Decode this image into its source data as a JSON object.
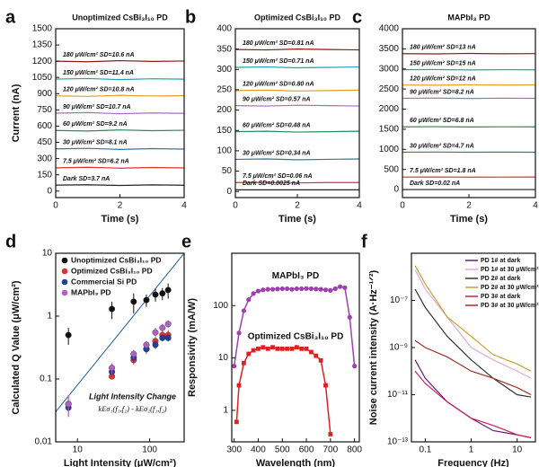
{
  "chart_data": [
    {
      "type": "line",
      "label": "a",
      "title": "Unoptimized CsBi₃I₁₀ PD",
      "xlabel": "Time (s)",
      "ylabel": "Current (nA)",
      "xlim": [
        0,
        4
      ],
      "xticks": [
        0,
        2,
        4
      ],
      "ylim": [
        -60,
        1500
      ],
      "yticks": [
        0,
        150,
        300,
        450,
        600,
        750,
        900,
        1050,
        1200,
        1350,
        1500
      ],
      "x": [
        0,
        1,
        2,
        3,
        4
      ],
      "series": [
        {
          "name": "180 μW/cm² SD=10.6 nA",
          "color": "#8b1a1a",
          "values": [
            1200,
            1195,
            1205,
            1198,
            1202
          ]
        },
        {
          "name": "150 μW/cm² SD=11.4 nA",
          "color": "#20a0b0",
          "values": [
            1035,
            1040,
            1030,
            1038,
            1034
          ]
        },
        {
          "name": "120 μW/cm² SD=10.8 nA",
          "color": "#e0a020",
          "values": [
            880,
            875,
            885,
            878,
            882
          ]
        },
        {
          "name": "90 μW/cm² SD=10.7 nA",
          "color": "#a070c8",
          "values": [
            720,
            725,
            715,
            722,
            718
          ]
        },
        {
          "name": "60 μW/cm² SD=9.2 nA",
          "color": "#2a8a5a",
          "values": [
            560,
            555,
            565,
            558,
            562
          ]
        },
        {
          "name": "30 μW/cm² SD=8.1 nA",
          "color": "#2a7aa0",
          "values": [
            390,
            395,
            385,
            392,
            388
          ]
        },
        {
          "name": "7.5 μW/cm² SD=6.2 nA",
          "color": "#e03030",
          "values": [
            215,
            220,
            212,
            218,
            214
          ]
        },
        {
          "name": "Dark SD=3.7 nA",
          "color": "#222222",
          "values": [
            55,
            58,
            52,
            57,
            54
          ]
        }
      ]
    },
    {
      "type": "line",
      "label": "b",
      "title": "Optimized CsBi₃I₁₀ PD",
      "xlabel": "Time (s)",
      "xlim": [
        0,
        4
      ],
      "xticks": [
        0,
        2,
        4
      ],
      "ylim": [
        -15,
        400
      ],
      "yticks": [
        0,
        50,
        100,
        150,
        200,
        250,
        300,
        350,
        400
      ],
      "x": [
        0,
        1,
        2,
        3,
        4
      ],
      "series": [
        {
          "name": "180 μW/cm² SD=0.81 nA",
          "color": "#8b1a1a",
          "values": [
            349,
            348,
            350,
            349,
            348
          ]
        },
        {
          "name": "150 μW/cm² SD=0.71 nA",
          "color": "#20a0b0",
          "values": [
            305,
            306,
            304,
            305,
            306
          ]
        },
        {
          "name": "120 μW/cm² SD=0.80 nA",
          "color": "#e0a020",
          "values": [
            248,
            249,
            247,
            248,
            249
          ]
        },
        {
          "name": "90 μW/cm² SD=0.57 nA",
          "color": "#a070c8",
          "values": [
            211,
            210,
            212,
            211,
            210
          ]
        },
        {
          "name": "60 μW/cm² SD=0.48 nA",
          "color": "#2a8a5a",
          "values": [
            147,
            148,
            146,
            147,
            148
          ]
        },
        {
          "name": "30 μW/cm² SD=0.34 nA",
          "color": "#2a7aa0",
          "values": [
            79,
            80,
            78,
            79,
            80
          ]
        },
        {
          "name": "7.5 μW/cm² SD=0.06 nA",
          "color": "#e03030",
          "values": [
            22,
            22,
            21,
            22,
            22
          ]
        },
        {
          "name": "Dark SD=0.0025 nA",
          "color": "#222222",
          "values": [
            4,
            4,
            4,
            4,
            4
          ]
        }
      ]
    },
    {
      "type": "line",
      "label": "c",
      "title": "MAPbI₃ PD",
      "xlabel": "Time (s)",
      "xlim": [
        0,
        4
      ],
      "xticks": [
        0,
        2,
        4
      ],
      "ylim": [
        -200,
        4000
      ],
      "yticks": [
        0,
        500,
        1000,
        1500,
        2000,
        2500,
        3000,
        3500,
        4000
      ],
      "x": [
        0,
        1,
        2,
        3,
        4
      ],
      "series": [
        {
          "name": "180 μW/cm² SD=13 nA",
          "color": "#8b1a1a",
          "values": [
            3380,
            3375,
            3385,
            3378,
            3382
          ]
        },
        {
          "name": "150 μW/cm² SD=15 nA",
          "color": "#20a0b0",
          "values": [
            2980,
            2985,
            2975,
            2982,
            2978
          ]
        },
        {
          "name": "120 μW/cm² SD=12 nA",
          "color": "#e0a020",
          "values": [
            2600,
            2595,
            2605,
            2598,
            2602
          ]
        },
        {
          "name": "90 μW/cm² SD=8.2 nA",
          "color": "#a070c8",
          "values": [
            2270,
            2274,
            2266,
            2272,
            2268
          ]
        },
        {
          "name": "60 μW/cm² SD=6.8 nA",
          "color": "#2a8a5a",
          "values": [
            1560,
            1563,
            1557,
            1561,
            1559
          ]
        },
        {
          "name": "30 μW/cm² SD=4.7 nA",
          "color": "#2a7aa0",
          "values": [
            930,
            932,
            928,
            931,
            929
          ]
        },
        {
          "name": "7.5 μW/cm² SD=1.8 nA",
          "color": "#e03030",
          "values": [
            310,
            311,
            309,
            310,
            311
          ]
        },
        {
          "name": "Dark SD=0.02 nA",
          "color": "#222222",
          "values": [
            0,
            0,
            0,
            0,
            0
          ]
        }
      ]
    },
    {
      "type": "scatter",
      "label": "d",
      "xlabel": "Light Intensity (μW/cm²)",
      "ylabel": "Calculated Q Value (μW/cm²)",
      "xscale": "log",
      "yscale": "log",
      "xlim": [
        5,
        300
      ],
      "xticks": [
        10,
        100
      ],
      "ylim": [
        0.01,
        10
      ],
      "yticks": [
        0.01,
        0.1,
        1,
        10
      ],
      "legend": "upper left",
      "annotations": [
        "Light Intensity Change",
        "kEσ₁(f₁,f₂) - kEσ₂(f₁,f₂)"
      ],
      "reference_line": {
        "x": [
          5,
          300
        ],
        "values": [
          0.03,
          10
        ],
        "color": "#1f5f9f"
      },
      "x": [
        7.5,
        30,
        60,
        90,
        120,
        150,
        180
      ],
      "series": [
        {
          "name": "Unoptimized CsBi₃I₁₀ PD",
          "color": "#111111",
          "values": [
            0.5,
            1.3,
            1.7,
            1.8,
            2.2,
            2.3,
            2.6
          ],
          "errors": [
            0.15,
            0.4,
            0.6,
            0.4,
            0.5,
            0.5,
            0.7
          ]
        },
        {
          "name": "Optimized CsBi₃I₁₀ PD",
          "color": "#e03030",
          "values": [
            0.04,
            0.11,
            0.2,
            0.3,
            0.4,
            0.5,
            0.5
          ],
          "errors": [
            0.015,
            0.01,
            0.03,
            0.05,
            0.08,
            0.1,
            0.1
          ]
        },
        {
          "name": "Commercial Si PD",
          "color": "#2040a0",
          "values": [
            0.035,
            0.13,
            0.22,
            0.3,
            0.35,
            0.45,
            0.45
          ],
          "errors": [
            0.005,
            0.01,
            0.03,
            0.04,
            0.05,
            0.05,
            0.05
          ]
        },
        {
          "name": "MAPbI₃ PD",
          "color": "#b060c0",
          "values": [
            0.04,
            0.15,
            0.25,
            0.35,
            0.55,
            0.65,
            0.75
          ],
          "errors": [
            0.015,
            0.03,
            0.04,
            0.05,
            0.1,
            0.1,
            0.1
          ]
        }
      ]
    },
    {
      "type": "line",
      "label": "e",
      "xlabel": "Wavelength (nm)",
      "ylabel": "Responsivity (mA/W)",
      "yscale": "log",
      "xlim": [
        290,
        820
      ],
      "xticks": [
        300,
        400,
        500,
        600,
        700,
        800
      ],
      "ylim": [
        0.25,
        1000
      ],
      "yticks": [
        1,
        10,
        100
      ],
      "series": [
        {
          "name": "MAPbI₃ PD",
          "color": "#a040b0",
          "marker": "circle",
          "x": [
            300,
            320,
            340,
            360,
            380,
            400,
            420,
            440,
            460,
            480,
            500,
            520,
            540,
            560,
            580,
            600,
            620,
            640,
            660,
            680,
            700,
            720,
            740,
            760,
            780,
            800
          ],
          "values": [
            7,
            30,
            80,
            130,
            170,
            190,
            200,
            205,
            205,
            208,
            210,
            210,
            205,
            210,
            210,
            212,
            210,
            208,
            205,
            200,
            195,
            210,
            230,
            220,
            60,
            7
          ]
        },
        {
          "name": "Optimized CsBi₃I₁₀ PD",
          "color": "#e02020",
          "marker": "square",
          "x": [
            310,
            320,
            340,
            360,
            380,
            400,
            420,
            440,
            460,
            480,
            500,
            520,
            540,
            560,
            580,
            600,
            620,
            640,
            660,
            680,
            700
          ],
          "values": [
            0.6,
            3,
            8,
            12,
            14,
            15,
            16,
            15,
            16,
            15,
            15,
            15,
            15,
            16,
            15,
            15,
            13,
            11,
            9,
            3,
            0.35
          ]
        }
      ]
    },
    {
      "type": "line",
      "label": "f",
      "xlabel": "Frequency (Hz)",
      "ylabel": "Noise current intensity (A·Hz⁻¹ᐟ²)",
      "xscale": "log",
      "yscale": "log",
      "xlim": [
        0.05,
        25
      ],
      "xticks": [
        0.1,
        1,
        10
      ],
      "ylim": [
        1e-13,
        1e-05
      ],
      "yticks": [
        {
          "value": 1e-13,
          "label": "10⁻¹³"
        },
        {
          "value": 1e-11,
          "label": "10⁻¹¹"
        },
        {
          "value": 1e-09,
          "label": "10⁻⁹"
        },
        {
          "value": 1e-07,
          "label": "10⁻⁷"
        }
      ],
      "legend": "upper right",
      "x": [
        0.06,
        0.1,
        0.3,
        1,
        3,
        10,
        20
      ],
      "series": [
        {
          "name": "PD 1# at dark",
          "color": "#6a1a7a",
          "values": [
            3e-10,
            5e-11,
            5e-12,
            1e-12,
            3e-13,
            2e-13,
            1.5e-13
          ]
        },
        {
          "name": "PD 1# at 30 μW/cm²",
          "color": "#e0a8dc",
          "values": [
            2e-06,
            3e-07,
            2e-08,
            1e-09,
            3e-10,
            1e-10,
            5e-11
          ]
        },
        {
          "name": "PD 2# at dark",
          "color": "#333333",
          "values": [
            3e-07,
            5e-08,
            3e-09,
            3e-10,
            5e-11,
            1e-11,
            8e-12
          ]
        },
        {
          "name": "PD 2# at 30 μW/cm²",
          "color": "#c8a030",
          "values": [
            3e-06,
            5e-07,
            2e-08,
            3e-09,
            5e-10,
            2e-10,
            1e-10
          ]
        },
        {
          "name": "PD 3# at dark",
          "color": "#c8205a",
          "values": [
            1e-10,
            3e-11,
            5e-12,
            1e-12,
            5e-13,
            2e-13,
            1.5e-13
          ]
        },
        {
          "name": "PD 3# at 30 μW/cm²",
          "color": "#a03020",
          "values": [
            2e-09,
            1e-09,
            4e-10,
            1e-10,
            5e-11,
            2e-11,
            1e-11
          ]
        }
      ]
    }
  ]
}
